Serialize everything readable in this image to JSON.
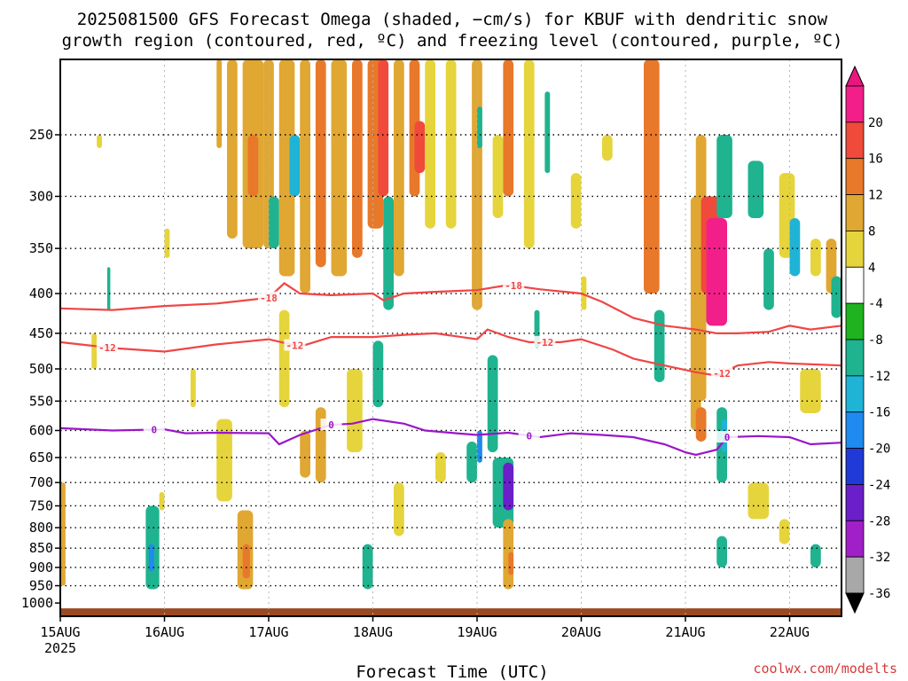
{
  "title": {
    "line1": "2025081500 GFS Forecast Omega (shaded, −cm/s) for KBUF with dendritic snow",
    "line2": "growth region (contoured, red, ºC) and freezing level (contoured, purple, ºC)"
  },
  "watermark": "coolwx.com/modelts",
  "chart_data": {
    "type": "heatmap",
    "title": "2025081500 GFS Forecast Omega (shaded, −cm/s) for KBUF with dendritic snow growth region (contoured, red, ºC) and freezing level (contoured, purple, ºC)",
    "xlabel": "Forecast Time (UTC)",
    "ylabel": "",
    "x_ticks": [
      "15AUG",
      "16AUG",
      "17AUG",
      "18AUG",
      "19AUG",
      "20AUG",
      "21AUG",
      "22AUG"
    ],
    "x_tick_sublabel": "2025",
    "x_range_days": [
      0,
      7.5
    ],
    "y_ticks": [
      250,
      300,
      350,
      400,
      450,
      500,
      550,
      600,
      650,
      700,
      750,
      800,
      850,
      900,
      950,
      1000
    ],
    "y_scale": "pressure (log)",
    "y_range_hpa": [
      200,
      1040
    ],
    "grid": true,
    "colorbar": {
      "labels": [
        20,
        16,
        12,
        8,
        4,
        -4,
        -8,
        -12,
        -16,
        -20,
        -24,
        -28,
        -32,
        -36
      ],
      "colors": [
        "#f21f8a",
        "#f04a3a",
        "#e8782a",
        "#e0a732",
        "#e6d43c",
        "#ffffff",
        "#1fb31f",
        "#1fb38f",
        "#1fb3d6",
        "#1f8af0",
        "#1f3ad6",
        "#6a1fc8",
        "#a01fc8",
        "#a8a8a8"
      ],
      "top_cap": "#e8177e",
      "bottom_cap": "#000000"
    },
    "ground_color": "#9a4a22",
    "contours": [
      {
        "name": "-18",
        "color": "#f04545",
        "label": "-18",
        "points": [
          [
            0,
            418
          ],
          [
            0.5,
            420
          ],
          [
            1.0,
            415
          ],
          [
            1.5,
            412
          ],
          [
            2.0,
            405
          ],
          [
            2.15,
            388
          ],
          [
            2.3,
            400
          ],
          [
            2.6,
            402
          ],
          [
            3.0,
            400
          ],
          [
            3.1,
            408
          ],
          [
            3.3,
            400
          ],
          [
            3.6,
            398
          ],
          [
            4.0,
            396
          ],
          [
            4.3,
            390
          ],
          [
            4.6,
            395
          ],
          [
            5.0,
            400
          ],
          [
            5.2,
            410
          ],
          [
            5.5,
            430
          ],
          [
            5.8,
            440
          ],
          [
            6.1,
            445
          ],
          [
            6.3,
            450
          ],
          [
            6.5,
            450
          ],
          [
            6.8,
            448
          ],
          [
            7.0,
            440
          ],
          [
            7.2,
            445
          ],
          [
            7.5,
            440
          ]
        ],
        "label_positions": [
          2.0,
          4.35
        ]
      },
      {
        "name": "-12",
        "color": "#f04545",
        "label": "-12",
        "points": [
          [
            0,
            462
          ],
          [
            0.5,
            470
          ],
          [
            1.0,
            475
          ],
          [
            1.5,
            465
          ],
          [
            2.0,
            458
          ],
          [
            2.3,
            468
          ],
          [
            2.6,
            455
          ],
          [
            3.0,
            455
          ],
          [
            3.3,
            452
          ],
          [
            3.6,
            450
          ],
          [
            4.0,
            458
          ],
          [
            4.1,
            445
          ],
          [
            4.3,
            455
          ],
          [
            4.5,
            462
          ],
          [
            4.8,
            462
          ],
          [
            5.0,
            458
          ],
          [
            5.3,
            472
          ],
          [
            5.5,
            485
          ],
          [
            5.8,
            495
          ],
          [
            6.1,
            505
          ],
          [
            6.3,
            510
          ],
          [
            6.5,
            495
          ],
          [
            6.8,
            490
          ],
          [
            7.0,
            492
          ],
          [
            7.5,
            495
          ]
        ],
        "label_positions": [
          0.45,
          2.25,
          4.65,
          6.35
        ]
      },
      {
        "name": "0",
        "color": "#9a16c8",
        "label": "0",
        "points": [
          [
            0,
            596
          ],
          [
            0.5,
            600
          ],
          [
            1.0,
            598
          ],
          [
            1.2,
            605
          ],
          [
            1.5,
            604
          ],
          [
            2.0,
            605
          ],
          [
            2.1,
            625
          ],
          [
            2.3,
            608
          ],
          [
            2.6,
            590
          ],
          [
            2.8,
            588
          ],
          [
            3.0,
            580
          ],
          [
            3.3,
            588
          ],
          [
            3.5,
            600
          ],
          [
            3.8,
            605
          ],
          [
            4.0,
            608
          ],
          [
            4.3,
            604
          ],
          [
            4.6,
            612
          ],
          [
            4.9,
            605
          ],
          [
            5.2,
            608
          ],
          [
            5.5,
            612
          ],
          [
            5.8,
            625
          ],
          [
            6.0,
            640
          ],
          [
            6.1,
            645
          ],
          [
            6.3,
            635
          ],
          [
            6.4,
            612
          ],
          [
            6.7,
            610
          ],
          [
            7.0,
            612
          ],
          [
            7.2,
            625
          ],
          [
            7.5,
            622
          ]
        ],
        "label_positions": [
          0.9,
          2.6,
          4.5,
          6.4
        ]
      }
    ],
    "shading": [
      {
        "x": [
          0.0,
          0.05
        ],
        "p": [
          700,
          950
        ],
        "v": 10
      },
      {
        "x": [
          0.3,
          0.35
        ],
        "p": [
          450,
          500
        ],
        "v": 6
      },
      {
        "x": [
          0.45,
          0.48
        ],
        "p": [
          370,
          420
        ],
        "v": -8
      },
      {
        "x": [
          0.35,
          0.4
        ],
        "p": [
          250,
          260
        ],
        "v": 6
      },
      {
        "x": [
          0.82,
          0.95
        ],
        "p": [
          750,
          960
        ],
        "v": -10
      },
      {
        "x": [
          0.85,
          0.9
        ],
        "p": [
          840,
          910
        ],
        "v": -16
      },
      {
        "x": [
          0.95,
          1.0
        ],
        "p": [
          720,
          760
        ],
        "v": 6
      },
      {
        "x": [
          1.0,
          1.05
        ],
        "p": [
          330,
          360
        ],
        "v": 6
      },
      {
        "x": [
          1.25,
          1.3
        ],
        "p": [
          500,
          560
        ],
        "v": 6
      },
      {
        "x": [
          1.5,
          1.55
        ],
        "p": [
          200,
          260
        ],
        "v": 10
      },
      {
        "x": [
          1.6,
          1.7
        ],
        "p": [
          200,
          340
        ],
        "v": 8
      },
      {
        "x": [
          1.75,
          1.95
        ],
        "p": [
          200,
          350
        ],
        "v": 10
      },
      {
        "x": [
          1.8,
          1.9
        ],
        "p": [
          250,
          300
        ],
        "v": 14
      },
      {
        "x": [
          1.95,
          2.05
        ],
        "p": [
          200,
          350
        ],
        "v": 8
      },
      {
        "x": [
          2.0,
          2.1
        ],
        "p": [
          300,
          350
        ],
        "v": -8
      },
      {
        "x": [
          2.1,
          2.25
        ],
        "p": [
          200,
          380
        ],
        "v": 10
      },
      {
        "x": [
          2.2,
          2.3
        ],
        "p": [
          250,
          300
        ],
        "v": -12
      },
      {
        "x": [
          2.3,
          2.4
        ],
        "p": [
          200,
          400
        ],
        "v": 8
      },
      {
        "x": [
          2.45,
          2.55
        ],
        "p": [
          200,
          370
        ],
        "v": 12
      },
      {
        "x": [
          2.6,
          2.75
        ],
        "p": [
          200,
          380
        ],
        "v": 10
      },
      {
        "x": [
          2.8,
          2.9
        ],
        "p": [
          200,
          360
        ],
        "v": 12
      },
      {
        "x": [
          2.95,
          3.1
        ],
        "p": [
          200,
          330
        ],
        "v": 14
      },
      {
        "x": [
          3.05,
          3.15
        ],
        "p": [
          200,
          300
        ],
        "v": 18
      },
      {
        "x": [
          3.1,
          3.2
        ],
        "p": [
          300,
          420
        ],
        "v": -8
      },
      {
        "x": [
          3.2,
          3.3
        ],
        "p": [
          200,
          380
        ],
        "v": 8
      },
      {
        "x": [
          3.35,
          3.45
        ],
        "p": [
          200,
          300
        ],
        "v": 12
      },
      {
        "x": [
          3.4,
          3.5
        ],
        "p": [
          240,
          280
        ],
        "v": 16
      },
      {
        "x": [
          3.5,
          3.6
        ],
        "p": [
          200,
          330
        ],
        "v": 6
      },
      {
        "x": [
          3.7,
          3.8
        ],
        "p": [
          200,
          330
        ],
        "v": 6
      },
      {
        "x": [
          3.95,
          4.05
        ],
        "p": [
          200,
          420
        ],
        "v": 8
      },
      {
        "x": [
          4.0,
          4.05
        ],
        "p": [
          230,
          260
        ],
        "v": -8
      },
      {
        "x": [
          4.15,
          4.25
        ],
        "p": [
          250,
          320
        ],
        "v": 6
      },
      {
        "x": [
          4.25,
          4.35
        ],
        "p": [
          200,
          300
        ],
        "v": 12
      },
      {
        "x": [
          4.45,
          4.55
        ],
        "p": [
          200,
          350
        ],
        "v": 6
      },
      {
        "x": [
          4.65,
          4.7
        ],
        "p": [
          220,
          280
        ],
        "v": -8
      },
      {
        "x": [
          4.9,
          5.0
        ],
        "p": [
          280,
          330
        ],
        "v": 6
      },
      {
        "x": [
          5.2,
          5.3
        ],
        "p": [
          250,
          270
        ],
        "v": 6
      },
      {
        "x": [
          1.5,
          1.65
        ],
        "p": [
          580,
          740
        ],
        "v": 6
      },
      {
        "x": [
          1.7,
          1.85
        ],
        "p": [
          760,
          960
        ],
        "v": 10
      },
      {
        "x": [
          1.75,
          1.82
        ],
        "p": [
          840,
          930
        ],
        "v": 14
      },
      {
        "x": [
          2.1,
          2.2
        ],
        "p": [
          420,
          560
        ],
        "v": 6
      },
      {
        "x": [
          2.3,
          2.4
        ],
        "p": [
          600,
          690
        ],
        "v": 10
      },
      {
        "x": [
          2.45,
          2.55
        ],
        "p": [
          560,
          700
        ],
        "v": 8
      },
      {
        "x": [
          2.75,
          2.9
        ],
        "p": [
          500,
          640
        ],
        "v": 6
      },
      {
        "x": [
          2.9,
          3.0
        ],
        "p": [
          840,
          960
        ],
        "v": -10
      },
      {
        "x": [
          3.0,
          3.1
        ],
        "p": [
          460,
          560
        ],
        "v": -8
      },
      {
        "x": [
          3.2,
          3.3
        ],
        "p": [
          700,
          820
        ],
        "v": 6
      },
      {
        "x": [
          3.6,
          3.7
        ],
        "p": [
          640,
          700
        ],
        "v": 6
      },
      {
        "x": [
          3.9,
          4.0
        ],
        "p": [
          620,
          700
        ],
        "v": -8
      },
      {
        "x": [
          4.0,
          4.05
        ],
        "p": [
          600,
          660
        ],
        "v": -16
      },
      {
        "x": [
          4.1,
          4.2
        ],
        "p": [
          480,
          640
        ],
        "v": -8
      },
      {
        "x": [
          4.15,
          4.35
        ],
        "p": [
          650,
          800
        ],
        "v": -10
      },
      {
        "x": [
          4.25,
          4.35
        ],
        "p": [
          660,
          760
        ],
        "v": -24
      },
      {
        "x": [
          4.25,
          4.35
        ],
        "p": [
          780,
          960
        ],
        "v": 8
      },
      {
        "x": [
          4.3,
          4.35
        ],
        "p": [
          860,
          920
        ],
        "v": 14
      },
      {
        "x": [
          4.55,
          4.6
        ],
        "p": [
          420,
          470
        ],
        "v": -8
      },
      {
        "x": [
          5.0,
          5.05
        ],
        "p": [
          380,
          420
        ],
        "v": 6
      },
      {
        "x": [
          5.6,
          5.75
        ],
        "p": [
          200,
          400
        ],
        "v": 12
      },
      {
        "x": [
          5.7,
          5.8
        ],
        "p": [
          420,
          520
        ],
        "v": -8
      },
      {
        "x": [
          6.05,
          6.15
        ],
        "p": [
          300,
          600
        ],
        "v": 10
      },
      {
        "x": [
          6.1,
          6.2
        ],
        "p": [
          250,
          550
        ],
        "v": 8
      },
      {
        "x": [
          6.15,
          6.35
        ],
        "p": [
          300,
          400
        ],
        "v": 16
      },
      {
        "x": [
          6.2,
          6.4
        ],
        "p": [
          320,
          440
        ],
        "v": 20
      },
      {
        "x": [
          6.3,
          6.45
        ],
        "p": [
          250,
          320
        ],
        "v": -8
      },
      {
        "x": [
          6.1,
          6.2
        ],
        "p": [
          560,
          620
        ],
        "v": 14
      },
      {
        "x": [
          6.3,
          6.4
        ],
        "p": [
          560,
          700
        ],
        "v": -8
      },
      {
        "x": [
          6.35,
          6.4
        ],
        "p": [
          580,
          640
        ],
        "v": -12
      },
      {
        "x": [
          6.6,
          6.75
        ],
        "p": [
          270,
          320
        ],
        "v": -8
      },
      {
        "x": [
          6.75,
          6.85
        ],
        "p": [
          350,
          420
        ],
        "v": -8
      },
      {
        "x": [
          6.9,
          7.05
        ],
        "p": [
          280,
          360
        ],
        "v": 6
      },
      {
        "x": [
          7.0,
          7.1
        ],
        "p": [
          320,
          380
        ],
        "v": -12
      },
      {
        "x": [
          7.2,
          7.3
        ],
        "p": [
          340,
          380
        ],
        "v": 6
      },
      {
        "x": [
          7.35,
          7.45
        ],
        "p": [
          340,
          400
        ],
        "v": 10
      },
      {
        "x": [
          7.4,
          7.5
        ],
        "p": [
          380,
          430
        ],
        "v": -8
      },
      {
        "x": [
          7.1,
          7.3
        ],
        "p": [
          500,
          570
        ],
        "v": 6
      },
      {
        "x": [
          6.6,
          6.8
        ],
        "p": [
          700,
          780
        ],
        "v": 6
      },
      {
        "x": [
          6.9,
          7.0
        ],
        "p": [
          780,
          840
        ],
        "v": 6
      },
      {
        "x": [
          6.3,
          6.4
        ],
        "p": [
          820,
          900
        ],
        "v": -8
      },
      {
        "x": [
          7.2,
          7.3
        ],
        "p": [
          840,
          900
        ],
        "v": -8
      }
    ]
  }
}
